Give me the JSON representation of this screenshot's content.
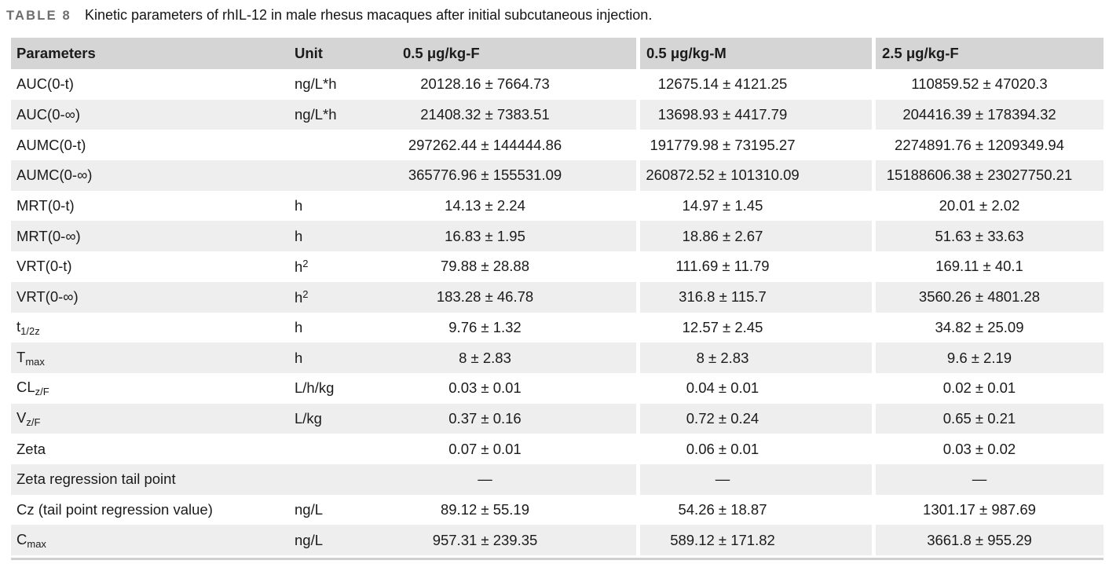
{
  "caption": {
    "tag": "TABLE 8",
    "text": "Kinetic parameters of rhIL-12 in male rhesus macaques after initial subcutaneous injection."
  },
  "colors": {
    "header_bg": "#d5d5d5",
    "row_stripe_bg": "#eeeeee",
    "row_bg": "#ffffff",
    "bottom_rule": "#cfcfcf",
    "caption_tag": "#6e6e6e",
    "text": "#1b1b1b"
  },
  "table": {
    "columns": [
      {
        "key": "parameter",
        "label": "Parameters"
      },
      {
        "key": "unit",
        "label": "Unit"
      },
      {
        "key": "g1",
        "label": "0.5 μg/kg-F"
      },
      {
        "key": "g2",
        "label": "0.5 μg/kg-M"
      },
      {
        "key": "g3",
        "label": "2.5 μg/kg-F"
      }
    ],
    "rows": [
      {
        "parameter": [
          {
            "t": "AUC(0-t)"
          }
        ],
        "unit": [
          {
            "t": "ng/L*h"
          }
        ],
        "g1": "20128.16 ± 7664.73",
        "g2": "12675.14 ± 4121.25",
        "g3": "110859.52 ± 47020.3"
      },
      {
        "parameter": [
          {
            "t": "AUC(0-∞)"
          }
        ],
        "unit": [
          {
            "t": "ng/L*h"
          }
        ],
        "g1": "21408.32 ± 7383.51",
        "g2": "13698.93 ± 4417.79",
        "g3": "204416.39 ± 178394.32"
      },
      {
        "parameter": [
          {
            "t": "AUMC(0-t)"
          }
        ],
        "unit": [],
        "g1": "297262.44 ± 144444.86",
        "g2": "191779.98 ± 73195.27",
        "g3": "2274891.76 ± 1209349.94"
      },
      {
        "parameter": [
          {
            "t": "AUMC(0-∞)"
          }
        ],
        "unit": [],
        "g1": "365776.96 ± 155531.09",
        "g2": "260872.52 ± 101310.09",
        "g3": "15188606.38 ± 23027750.21"
      },
      {
        "parameter": [
          {
            "t": "MRT(0-t)"
          }
        ],
        "unit": [
          {
            "t": "h"
          }
        ],
        "g1": "14.13 ± 2.24",
        "g2": "14.97 ± 1.45",
        "g3": "20.01 ± 2.02"
      },
      {
        "parameter": [
          {
            "t": "MRT(0-∞)"
          }
        ],
        "unit": [
          {
            "t": "h"
          }
        ],
        "g1": "16.83 ± 1.95",
        "g2": "18.86 ± 2.67",
        "g3": "51.63 ± 33.63"
      },
      {
        "parameter": [
          {
            "t": "VRT(0-t)"
          }
        ],
        "unit": [
          {
            "t": "h"
          },
          {
            "sup": "2"
          }
        ],
        "g1": "79.88 ± 28.88",
        "g2": "111.69 ± 11.79",
        "g3": "169.11 ± 40.1"
      },
      {
        "parameter": [
          {
            "t": "VRT(0-∞)"
          }
        ],
        "unit": [
          {
            "t": "h"
          },
          {
            "sup": "2"
          }
        ],
        "g1": "183.28 ± 46.78",
        "g2": "316.8 ± 115.7",
        "g3": "3560.26 ± 4801.28"
      },
      {
        "parameter": [
          {
            "t": "t"
          },
          {
            "sub": "1/2z"
          }
        ],
        "unit": [
          {
            "t": "h"
          }
        ],
        "g1": "9.76 ± 1.32",
        "g2": "12.57 ± 2.45",
        "g3": "34.82 ± 25.09"
      },
      {
        "parameter": [
          {
            "t": "T"
          },
          {
            "sub": "max"
          }
        ],
        "unit": [
          {
            "t": "h"
          }
        ],
        "g1": "8 ± 2.83",
        "g2": "8 ± 2.83",
        "g3": "9.6 ± 2.19"
      },
      {
        "parameter": [
          {
            "t": "CL"
          },
          {
            "sub": "z/F"
          }
        ],
        "unit": [
          {
            "t": "L/h/kg"
          }
        ],
        "g1": "0.03 ± 0.01",
        "g2": "0.04 ± 0.01",
        "g3": "0.02 ± 0.01"
      },
      {
        "parameter": [
          {
            "t": "V"
          },
          {
            "sub": "z/F"
          }
        ],
        "unit": [
          {
            "t": "L/kg"
          }
        ],
        "g1": "0.37 ± 0.16",
        "g2": "0.72 ± 0.24",
        "g3": "0.65 ± 0.21"
      },
      {
        "parameter": [
          {
            "t": "Zeta"
          }
        ],
        "unit": [],
        "g1": "0.07 ± 0.01",
        "g2": "0.06 ± 0.01",
        "g3": "0.03 ± 0.02"
      },
      {
        "parameter": [
          {
            "t": "Zeta regression tail point"
          }
        ],
        "unit": [],
        "g1": "—",
        "g2": "—",
        "g3": "—"
      },
      {
        "parameter": [
          {
            "t": "Cz (tail point regression value)"
          }
        ],
        "unit": [
          {
            "t": "ng/L"
          }
        ],
        "g1": "89.12 ± 55.19",
        "g2": "54.26 ± 18.87",
        "g3": "1301.17 ± 987.69"
      },
      {
        "parameter": [
          {
            "t": "C"
          },
          {
            "sub": "max"
          }
        ],
        "unit": [
          {
            "t": "ng/L"
          }
        ],
        "g1": "957.31 ± 239.35",
        "g2": "589.12 ± 171.82",
        "g3": "3661.8 ± 955.29"
      }
    ]
  }
}
